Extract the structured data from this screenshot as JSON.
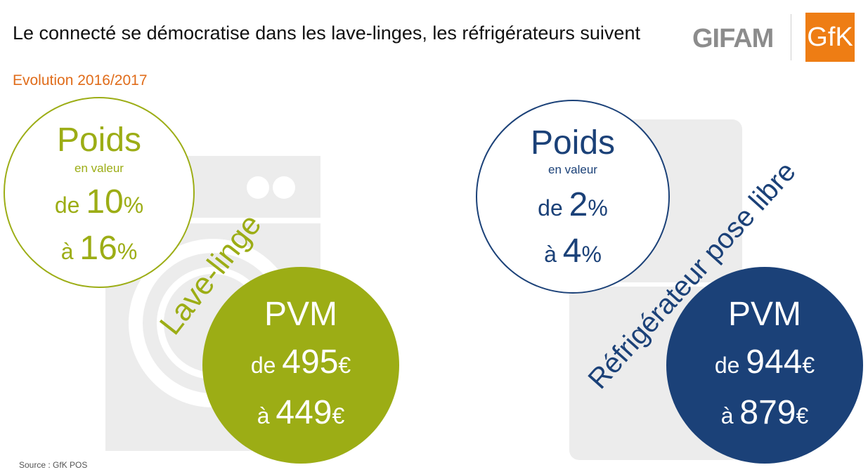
{
  "header": {
    "title": "Le connecté se démocratise dans les lave-linges, les réfrigérateurs suivent",
    "subtitle": "Evolution 2016/2017"
  },
  "logos": {
    "gifam": "GIFAM",
    "gfk": "GfK"
  },
  "colors": {
    "green": "#9cad15",
    "blue": "#1b4178",
    "orange": "#e06c1a",
    "appliance_gray": "#ececec"
  },
  "washer": {
    "label": "Lave-linge",
    "poids": {
      "title": "Poids",
      "caption": "en valeur",
      "from_prefix": "de ",
      "from_value": "10",
      "from_unit": "%",
      "to_prefix": "à ",
      "to_value": "16",
      "to_unit": "%"
    },
    "pvm": {
      "title": "PVM",
      "from_prefix": "de ",
      "from_value": "495",
      "from_unit": "€",
      "to_prefix": "à ",
      "to_value": "449",
      "to_unit": "€"
    }
  },
  "fridge": {
    "label": "Réfrigérateur pose libre",
    "poids": {
      "title": "Poids",
      "caption": "en valeur",
      "from_prefix": "de ",
      "from_value": "2",
      "from_unit": "%",
      "to_prefix": "à ",
      "to_value": "4",
      "to_unit": "%"
    },
    "pvm": {
      "title": "PVM",
      "from_prefix": "de ",
      "from_value": "944",
      "from_unit": "€",
      "to_prefix": "à ",
      "to_value": "879",
      "to_unit": "€"
    }
  },
  "footer": {
    "source": "Source : GfK POS"
  }
}
